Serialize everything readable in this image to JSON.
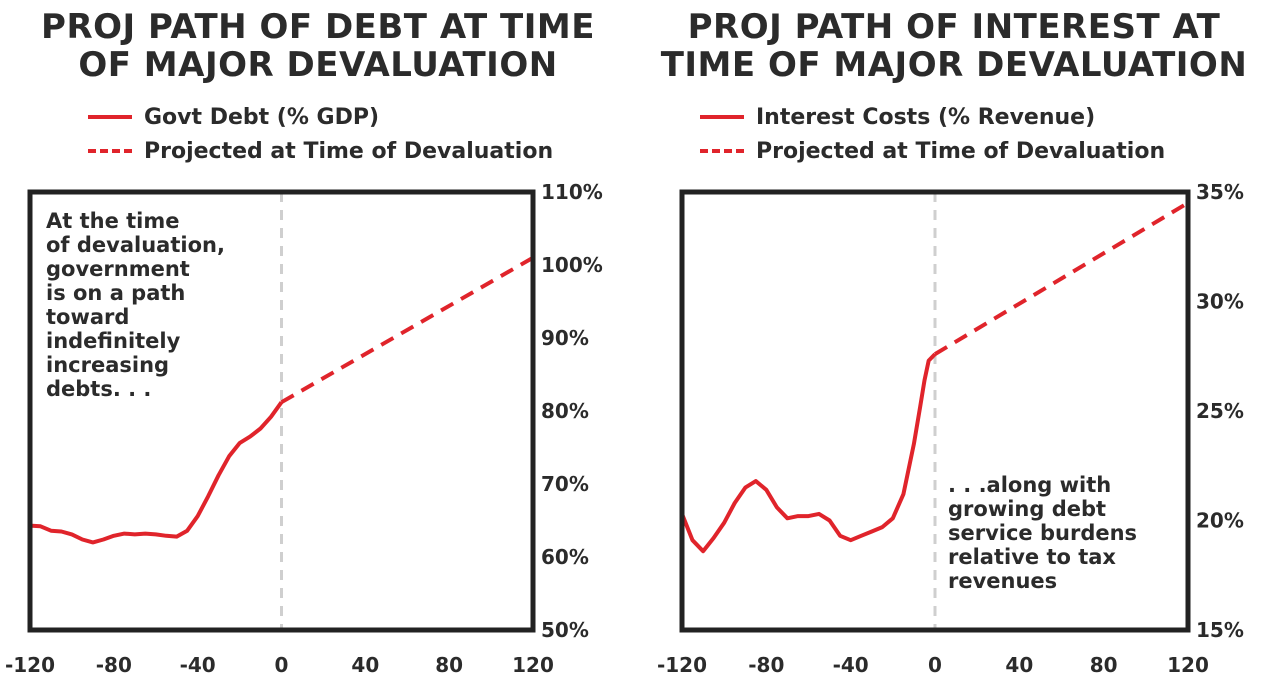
{
  "chart_data": [
    {
      "type": "line",
      "title": "PROJ PATH OF DEBT AT TIME OF MAJOR DEVALUATION",
      "title_lines": [
        "PROJ PATH OF DEBT AT TIME",
        "OF MAJOR DEVALUATION"
      ],
      "legend": [
        "Govt Debt (% GDP)",
        "Projected at Time of Devaluation"
      ],
      "legend_placement": "top-left",
      "annotation": [
        "At the time",
        "of devaluation,",
        "government",
        "is on a path",
        "toward",
        "indefinitely",
        "increasing",
        "debts. . ."
      ],
      "xlim": [
        -120,
        120
      ],
      "ylim": [
        50,
        110
      ],
      "x_ticks": [
        -120,
        -80,
        -40,
        0,
        40,
        80,
        120
      ],
      "x_tick_labels": [
        "-120",
        "-80",
        "-40",
        "0",
        "40",
        "80",
        "120"
      ],
      "y_ticks": [
        50,
        60,
        70,
        80,
        90,
        100,
        110
      ],
      "y_tick_labels": [
        "50%",
        "60%",
        "70%",
        "80%",
        "90%",
        "100%",
        "110%"
      ],
      "y_axis_side": "right",
      "grid": false,
      "vline_x": 0,
      "color": "#e0242b",
      "series": [
        {
          "name": "Govt Debt (% GDP)",
          "style": "solid",
          "x": [
            -120,
            -115,
            -110,
            -105,
            -100,
            -95,
            -90,
            -85,
            -80,
            -75,
            -70,
            -65,
            -60,
            -55,
            -50,
            -45,
            -40,
            -35,
            -30,
            -25,
            -20,
            -15,
            -10,
            -5,
            0
          ],
          "y": [
            64.3,
            64.2,
            63.6,
            63.5,
            63.1,
            62.4,
            62.0,
            62.4,
            62.9,
            63.2,
            63.1,
            63.2,
            63.1,
            62.9,
            62.8,
            63.6,
            65.6,
            68.3,
            71.2,
            73.8,
            75.6,
            76.5,
            77.6,
            79.2,
            81.2
          ]
        },
        {
          "name": "Projected at Time of Devaluation",
          "style": "dashed",
          "x": [
            0,
            120
          ],
          "y": [
            81.2,
            101.0
          ]
        }
      ]
    },
    {
      "type": "line",
      "title": "PROJ PATH OF INTEREST AT TIME OF MAJOR DEVALUATION",
      "title_lines": [
        "PROJ PATH OF INTEREST AT",
        "TIME OF MAJOR DEVALUATION"
      ],
      "legend": [
        "Interest Costs (% Revenue)",
        "Projected at Time of Devaluation"
      ],
      "legend_placement": "top-left",
      "annotation": [
        ". . .along with",
        "growing debt",
        "service burdens",
        "relative to tax",
        "revenues"
      ],
      "xlim": [
        -120,
        120
      ],
      "ylim": [
        15,
        35
      ],
      "x_ticks": [
        -120,
        -80,
        -40,
        0,
        40,
        80,
        120
      ],
      "x_tick_labels": [
        "-120",
        "-80",
        "-40",
        "0",
        "40",
        "80",
        "120"
      ],
      "y_ticks": [
        15,
        20,
        25,
        30,
        35
      ],
      "y_tick_labels": [
        "15%",
        "20%",
        "25%",
        "30%",
        "35%"
      ],
      "y_axis_side": "right",
      "grid": false,
      "vline_x": 0,
      "color": "#e0242b",
      "series": [
        {
          "name": "Interest Costs (% Revenue)",
          "style": "solid",
          "x": [
            -120,
            -115,
            -110,
            -105,
            -100,
            -95,
            -90,
            -85,
            -80,
            -75,
            -70,
            -65,
            -60,
            -55,
            -50,
            -45,
            -40,
            -35,
            -30,
            -25,
            -20,
            -15,
            -10,
            -7,
            -5,
            -3,
            0
          ],
          "y": [
            20.3,
            19.1,
            18.6,
            19.2,
            19.9,
            20.8,
            21.5,
            21.8,
            21.4,
            20.6,
            20.1,
            20.2,
            20.2,
            20.3,
            20.0,
            19.3,
            19.1,
            19.3,
            19.5,
            19.7,
            20.1,
            21.2,
            23.5,
            25.2,
            26.4,
            27.3,
            27.6
          ]
        },
        {
          "name": "Projected at Time of Devaluation",
          "style": "dashed",
          "x": [
            0,
            120
          ],
          "y": [
            27.6,
            34.5
          ]
        }
      ]
    }
  ]
}
